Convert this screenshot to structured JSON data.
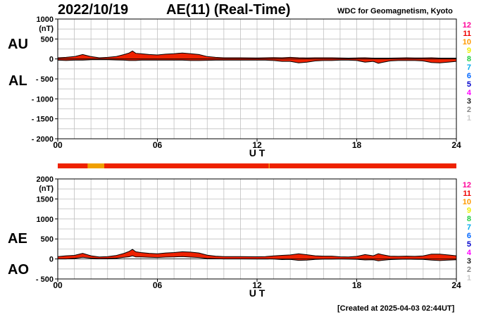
{
  "header": {
    "date": "2022/10/19",
    "title": "AE(11) (Real-Time)",
    "source": "WDC for Geomagnetism, Kyoto"
  },
  "footer": {
    "created": "[Created at 2025-04-03 02:44UT]"
  },
  "colors": {
    "fill": "#ee2200",
    "grid": "#c0c0c0",
    "bar_main": "#ee2200",
    "bar_alt": "#f0a000",
    "scale_colors": [
      "#cccccc",
      "#888888",
      "#222222",
      "#ff00ff",
      "#0000cc",
      "#0066ff",
      "#00aaee",
      "#22cc44",
      "#eeee00",
      "#ff9900",
      "#ee0000",
      "#ff0099"
    ]
  },
  "station_scale": {
    "labels": [
      "12",
      "11",
      "10",
      "9",
      "8",
      "7",
      "6",
      "5",
      "4",
      "3",
      "2",
      "1"
    ]
  },
  "chart_data": [
    {
      "id": "top",
      "type": "area",
      "series_labels": [
        "AU",
        "AL"
      ],
      "unit": "(nT)",
      "xlabel": "U T",
      "x_ticks": [
        "00",
        "06",
        "12",
        "18",
        "24"
      ],
      "y_ticks": [
        "1000",
        "500",
        "0",
        "- 500",
        "- 1000",
        "- 1500",
        "- 2000"
      ],
      "xlim": [
        0,
        24
      ],
      "ylim": [
        -2000,
        1000
      ],
      "x": [
        0,
        0.5,
        1,
        1.5,
        2,
        2.5,
        3,
        3.5,
        4,
        4.3,
        4.5,
        4.7,
        5,
        5.5,
        6,
        6.5,
        7,
        7.5,
        8,
        8.5,
        9,
        9.5,
        10,
        11,
        12,
        12.5,
        13,
        13.5,
        14,
        14.5,
        15,
        15.5,
        16,
        16.5,
        17,
        17.5,
        18,
        18.5,
        19,
        19.3,
        19.5,
        20,
        20.5,
        21,
        21.5,
        22,
        22.5,
        23,
        23.5,
        24
      ],
      "series": [
        {
          "name": "AU",
          "values": [
            30,
            40,
            60,
            110,
            60,
            30,
            40,
            60,
            110,
            150,
            200,
            140,
            130,
            110,
            100,
            120,
            130,
            150,
            130,
            110,
            60,
            40,
            30,
            30,
            25,
            30,
            35,
            30,
            40,
            30,
            25,
            30,
            30,
            30,
            25,
            20,
            25,
            30,
            20,
            20,
            20,
            20,
            25,
            30,
            25,
            25,
            30,
            20,
            20,
            20
          ]
        },
        {
          "name": "AL",
          "values": [
            -30,
            -40,
            -30,
            -30,
            -20,
            -20,
            -20,
            -25,
            -30,
            -40,
            -40,
            -40,
            -30,
            -30,
            -30,
            -30,
            -30,
            -30,
            -40,
            -40,
            -35,
            -30,
            -30,
            -30,
            -30,
            -30,
            -40,
            -60,
            -60,
            -100,
            -80,
            -50,
            -40,
            -40,
            -30,
            -30,
            -40,
            -80,
            -60,
            -110,
            -90,
            -50,
            -40,
            -40,
            -40,
            -50,
            -90,
            -100,
            -80,
            -60
          ]
        }
      ]
    },
    {
      "id": "bottom",
      "type": "area",
      "series_labels": [
        "AE",
        "AO"
      ],
      "unit": "(nT)",
      "xlabel": "U T",
      "x_ticks": [
        "00",
        "06",
        "12",
        "18",
        "24"
      ],
      "y_ticks": [
        "2000",
        "1500",
        "1000",
        "500",
        "0",
        "- 500"
      ],
      "xlim": [
        0,
        24
      ],
      "ylim": [
        -500,
        2000
      ],
      "x": [
        0,
        0.5,
        1,
        1.5,
        2,
        2.5,
        3,
        3.5,
        4,
        4.3,
        4.5,
        4.7,
        5,
        5.5,
        6,
        6.5,
        7,
        7.5,
        8,
        8.5,
        9,
        9.5,
        10,
        11,
        12,
        12.5,
        13,
        13.5,
        14,
        14.5,
        15,
        15.5,
        16,
        16.5,
        17,
        17.5,
        18,
        18.5,
        19,
        19.3,
        19.5,
        20,
        20.5,
        21,
        21.5,
        22,
        22.5,
        23,
        23.5,
        24
      ],
      "series": [
        {
          "name": "AE",
          "values": [
            60,
            80,
            90,
            140,
            80,
            50,
            60,
            85,
            140,
            190,
            240,
            180,
            160,
            140,
            130,
            150,
            160,
            180,
            170,
            150,
            95,
            70,
            60,
            60,
            55,
            60,
            75,
            90,
            100,
            130,
            105,
            80,
            70,
            70,
            55,
            50,
            65,
            110,
            80,
            130,
            110,
            70,
            65,
            70,
            65,
            75,
            120,
            120,
            100,
            80
          ]
        },
        {
          "name": "AO",
          "values": [
            0,
            0,
            15,
            40,
            20,
            5,
            10,
            18,
            40,
            55,
            80,
            50,
            50,
            40,
            35,
            45,
            50,
            60,
            45,
            35,
            12,
            5,
            0,
            0,
            -3,
            0,
            -3,
            -15,
            -10,
            -35,
            -28,
            -10,
            -5,
            -5,
            -3,
            -5,
            -8,
            -25,
            -20,
            -45,
            -35,
            -15,
            -8,
            -5,
            -8,
            -12,
            -30,
            -40,
            -30,
            -20
          ]
        }
      ]
    }
  ],
  "status_bar": {
    "segments": [
      {
        "from": 0,
        "to": 1.8,
        "color": "#ee2200"
      },
      {
        "from": 1.8,
        "to": 2.8,
        "color": "#f0a000"
      },
      {
        "from": 2.8,
        "to": 12.7,
        "color": "#ee2200"
      },
      {
        "from": 12.7,
        "to": 12.75,
        "color": "#f0a000"
      },
      {
        "from": 12.75,
        "to": 24,
        "color": "#ee2200"
      }
    ]
  }
}
